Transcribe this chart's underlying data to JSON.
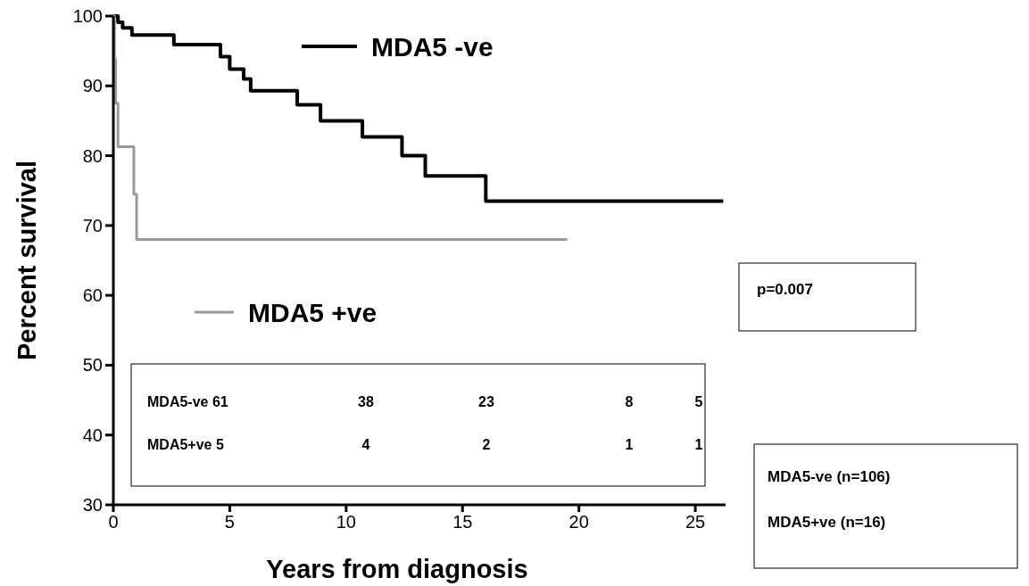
{
  "chart_data": {
    "type": "step",
    "xlabel": "Years from diagnosis",
    "ylabel": "Percent survival",
    "xlim": [
      0,
      26.3
    ],
    "ylim": [
      30,
      100
    ],
    "xticks": [
      0,
      5,
      10,
      15,
      20,
      25
    ],
    "yticks": [
      30,
      40,
      50,
      60,
      70,
      80,
      90,
      100
    ],
    "legend": "top",
    "grid": false,
    "marker": "none",
    "series": [
      {
        "name": "MDA5 -ve",
        "color": "#000000",
        "x": [
          0,
          0.2,
          0.4,
          0.8,
          2.6,
          4.6,
          5.0,
          5.6,
          5.9,
          7.9,
          8.9,
          10.7,
          12.4,
          13.4,
          16.0,
          26.2
        ],
        "values": [
          100,
          99.1,
          98.3,
          97.3,
          95.9,
          94.2,
          92.4,
          91.0,
          89.3,
          87.3,
          85.0,
          82.7,
          80.0,
          77.1,
          73.5,
          73.5
        ]
      },
      {
        "name": "MDA5 +ve",
        "color": "#9a9a9a",
        "x": [
          0,
          0.05,
          0.1,
          0.2,
          0.88,
          1.0,
          19.5
        ],
        "values": [
          100,
          93.8,
          87.5,
          81.3,
          74.5,
          68.0,
          68.0
        ]
      }
    ],
    "annotations": [
      "p=0.007",
      "MDA5-ve  61",
      "38",
      "23",
      "8",
      "5",
      "MDA5+ve 5",
      "4",
      "2",
      "1",
      "1",
      "MDA5-ve (n=106)",
      "MDA5+ve (n=16)"
    ]
  }
}
